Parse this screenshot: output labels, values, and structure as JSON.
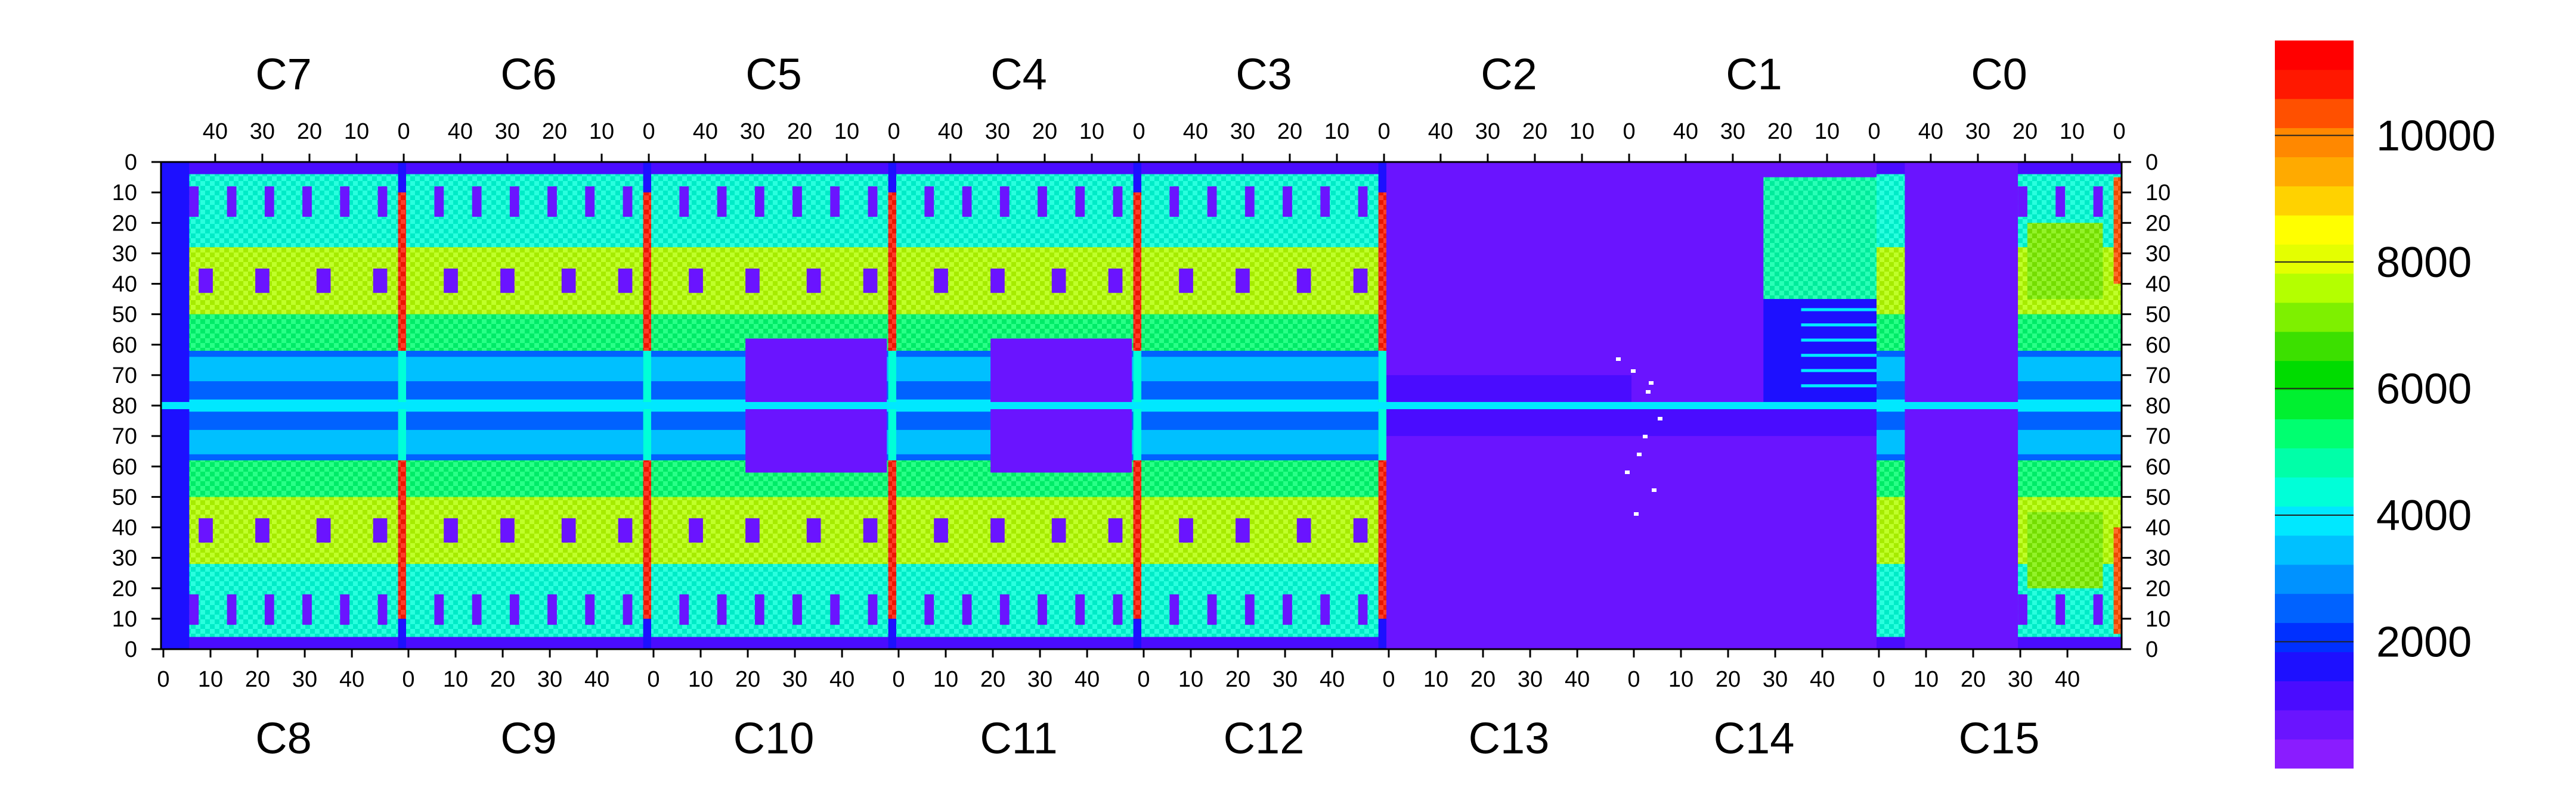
{
  "chart_data": {
    "type": "heatmap",
    "title": "",
    "xlabel": "",
    "ylabel": "",
    "zlim": [
      0,
      11500
    ],
    "grid": false,
    "legend": "colorbar-right",
    "colorbar": {
      "ticks": [
        2000,
        4000,
        6000,
        8000,
        10000
      ],
      "tick_labels": [
        "2000",
        "4000",
        "6000",
        "8000",
        "10000"
      ],
      "colors": [
        "#8a1cff",
        "#6a14ff",
        "#4a0cff",
        "#1d10ff",
        "#0030ff",
        "#0062ff",
        "#0092ff",
        "#00c0ff",
        "#00e8ff",
        "#00ffd8",
        "#00ffa8",
        "#00ff70",
        "#00f030",
        "#00dc00",
        "#3ce000",
        "#7ef000",
        "#b4ff00",
        "#e4ff00",
        "#ffff00",
        "#ffd200",
        "#ffaa00",
        "#ff8800",
        "#ff5000",
        "#ff1800",
        "#ff0000"
      ]
    },
    "top_chips": [
      "C7",
      "C6",
      "C5",
      "C4",
      "C3",
      "C2",
      "C1",
      "C0"
    ],
    "bottom_chips": [
      "C8",
      "C9",
      "C10",
      "C11",
      "C12",
      "C13",
      "C14",
      "C15"
    ],
    "top_x_ticks": [
      "40",
      "30",
      "20",
      "10",
      "0"
    ],
    "bottom_x_ticks": [
      "0",
      "10",
      "20",
      "30",
      "40"
    ],
    "y_ticks": [
      "0",
      "10",
      "20",
      "30",
      "40",
      "50",
      "60",
      "70",
      "80",
      "70",
      "60",
      "50",
      "40",
      "30",
      "20",
      "10",
      "0"
    ],
    "chip_columns": 52,
    "chip_rows": 80,
    "dead_chips": [
      "C13"
    ],
    "hot_edge_columns": "col 0 of chips C7/C8 through C1/C14 at about 11000; col 51 of C0/C15 partial"
  }
}
